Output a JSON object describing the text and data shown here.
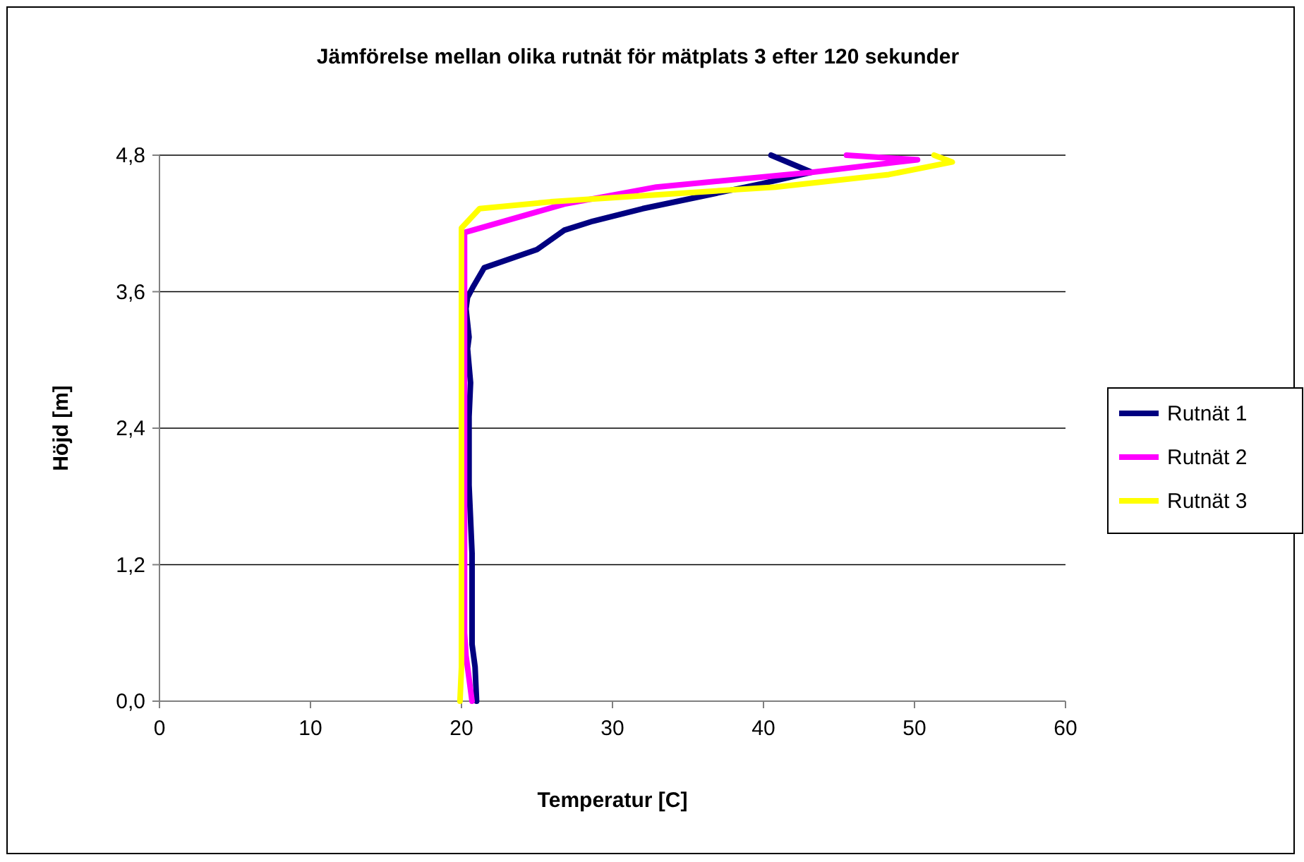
{
  "chart_data": {
    "type": "line",
    "title": "Jämförelse mellan olika rutnät för mätplats 3 efter 120 sekunder",
    "xlabel": "Temperatur [C]",
    "ylabel": "Höjd [m]",
    "xlim": [
      0,
      60
    ],
    "xticks": [
      0,
      10,
      20,
      30,
      40,
      50,
      60
    ],
    "ylim": [
      0,
      4.8
    ],
    "yticks": [
      {
        "value": 0,
        "label": "0,0"
      },
      {
        "value": 1.2,
        "label": "1,2"
      },
      {
        "value": 2.4,
        "label": "2,4"
      },
      {
        "value": 3.6,
        "label": "3,6"
      },
      {
        "value": 4.8,
        "label": "4,8"
      }
    ],
    "grid": "y",
    "legend": "right",
    "marker": "none",
    "line_style": "solid",
    "series": [
      {
        "name": "Rutnät 1",
        "color": "#000080",
        "x": [
          21,
          20.9,
          20.7,
          20.7,
          20.6,
          20.5,
          20.5,
          20.6,
          20.4,
          20.5,
          20.3,
          20.4,
          20.8,
          21.5,
          25,
          26.8,
          28.7,
          32,
          39.9,
          43.2,
          40.5
        ],
        "values": [
          0,
          0.3,
          0.5,
          1.3,
          1.6,
          1.9,
          2.5,
          2.8,
          3.1,
          3.2,
          3.45,
          3.55,
          3.65,
          3.81,
          3.97,
          4.14,
          4.22,
          4.33,
          4.55,
          4.65,
          4.8
        ]
      },
      {
        "name": "Rutnät 2",
        "color": "#ff00ff",
        "x": [
          20.7,
          20.3,
          20.2,
          20.2,
          20.2,
          26.8,
          32.9,
          43.2,
          50.2,
          45.5
        ],
        "values": [
          0,
          0.4,
          0.6,
          2.4,
          4.12,
          4.37,
          4.52,
          4.65,
          4.76,
          4.8
        ]
      },
      {
        "name": "Rutnät 3",
        "color": "#ffff00",
        "x": [
          19.9,
          20,
          20,
          20,
          21.2,
          25.9,
          40.8,
          48.3,
          52.5,
          51.3
        ],
        "values": [
          0,
          0.3,
          2.4,
          4.16,
          4.33,
          4.39,
          4.52,
          4.63,
          4.74,
          4.8
        ]
      }
    ]
  }
}
